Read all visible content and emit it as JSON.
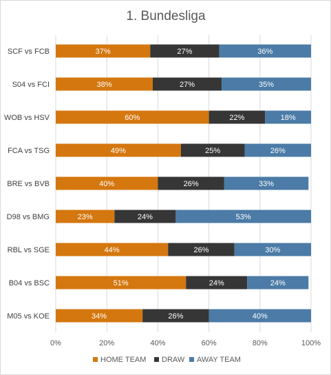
{
  "chart_data": {
    "type": "bar",
    "orientation": "horizontal",
    "stacked": "percent",
    "title": "1. Bundesliga",
    "categories": [
      "SCF vs FCB",
      "S04 vs FCI",
      "WOB vs HSV",
      "FCA vs TSG",
      "BRE vs BVB",
      "D98 vs BMG",
      "RBL vs SGE",
      "B04 vs BSC",
      "M05 vs KOE"
    ],
    "series": [
      {
        "name": "HOME TEAM",
        "color": "#d4770f",
        "values": [
          37,
          38,
          60,
          49,
          40,
          23,
          44,
          51,
          34
        ],
        "labels": [
          "37%",
          "38%",
          "60%",
          "49%",
          "40%",
          "23%",
          "44%",
          "51%",
          "34%"
        ]
      },
      {
        "name": "DRAW",
        "color": "#363636",
        "values": [
          27,
          27,
          22,
          25,
          26,
          24,
          26,
          24,
          26
        ],
        "labels": [
          "27%",
          "27%",
          "22%",
          "25%",
          "26%",
          "24%",
          "26%",
          "24%",
          "26%"
        ]
      },
      {
        "name": "AWAY TEAM",
        "color": "#4b7ba6",
        "values": [
          36,
          35,
          18,
          26,
          33,
          53,
          30,
          24,
          40
        ],
        "labels": [
          "36%",
          "35%",
          "18%",
          "26%",
          "33%",
          "53%",
          "30%",
          "24%",
          "40%"
        ]
      }
    ],
    "xlim": [
      0,
      100
    ],
    "xticks": [
      "0%",
      "20%",
      "40%",
      "60%",
      "80%",
      "100%"
    ],
    "grid": true,
    "legend": "bottom"
  }
}
